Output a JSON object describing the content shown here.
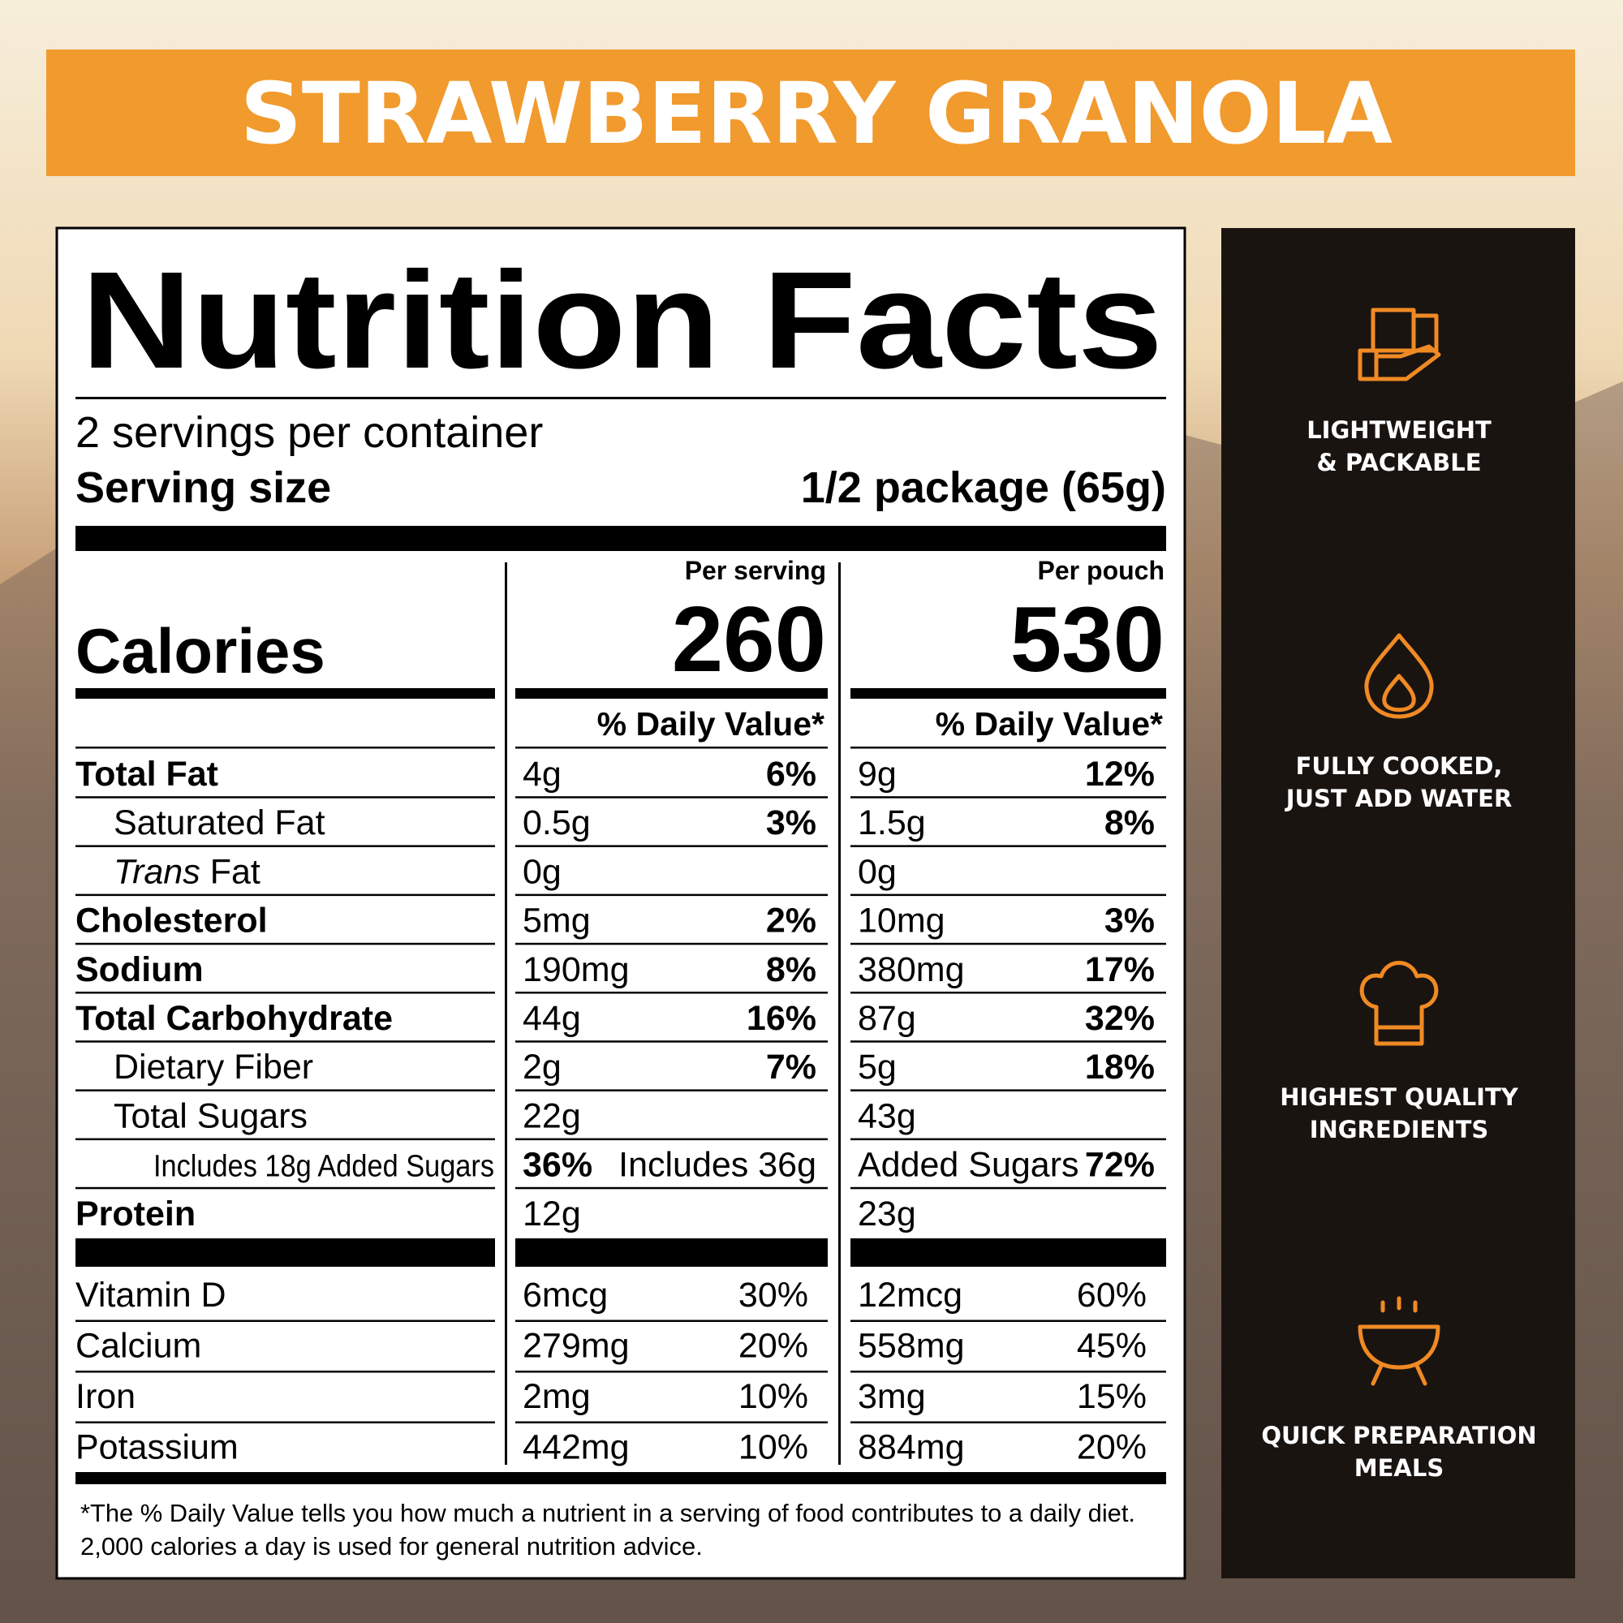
{
  "header": {
    "title": "STRAWBERRY GRANOLA"
  },
  "label": {
    "title": "Nutrition Facts",
    "servings": "2 servings per container",
    "serving_size_label": "Serving size",
    "serving_size": "1/2 package (65g)",
    "calories_label": "Calories",
    "columns": [
      {
        "heading": "Per serving",
        "calories": "260",
        "dv_heading": "% Daily Value*"
      },
      {
        "heading": "Per pouch",
        "calories": "530",
        "dv_heading": "% Daily Value*"
      }
    ],
    "rows": [
      {
        "name": "Total Fat",
        "bold": true,
        "cells": [
          [
            "4g",
            "6%"
          ],
          [
            "9g",
            "12%"
          ]
        ]
      },
      {
        "name": "Saturated Fat",
        "indent": 1,
        "cells": [
          [
            "0.5g",
            "3%"
          ],
          [
            "1.5g",
            "8%"
          ]
        ]
      },
      {
        "name_italic": "Trans",
        "name": "Fat",
        "indent": 1,
        "cells": [
          [
            "0g"
          ],
          [
            "0g"
          ]
        ]
      },
      {
        "name": "Cholesterol",
        "bold": true,
        "cells": [
          [
            "5mg",
            "2%"
          ],
          [
            "10mg",
            "3%"
          ]
        ]
      },
      {
        "name": "Sodium",
        "bold": true,
        "cells": [
          [
            "190mg",
            "8%"
          ],
          [
            "380mg",
            "17%"
          ]
        ]
      },
      {
        "name": "Total Carbohydrate",
        "bold": true,
        "cells": [
          [
            "44g",
            "16%"
          ],
          [
            "87g",
            "32%"
          ]
        ]
      },
      {
        "name": "Dietary Fiber",
        "indent": 1,
        "cells": [
          [
            "2g",
            "7%"
          ],
          [
            "5g",
            "18%"
          ]
        ]
      },
      {
        "name": "Total Sugars",
        "indent": 1,
        "cells": [
          [
            "22g"
          ],
          [
            "43g"
          ]
        ]
      },
      {
        "name": "Includes 18g Added Sugars",
        "indent": 2,
        "cells": [
          [
            "36%",
            "Includes 36g"
          ],
          [
            "Added Sugars",
            "72%"
          ]
        ]
      },
      {
        "name": "Protein",
        "bold": true,
        "cells": [
          [
            "12g"
          ],
          [
            "23g"
          ]
        ]
      }
    ],
    "vitamins": [
      {
        "name": "Vitamin D",
        "cells": [
          [
            "6mcg",
            "30%"
          ],
          [
            "12mcg",
            "60%"
          ]
        ]
      },
      {
        "name": "Calcium",
        "cells": [
          [
            "279mg",
            "20%"
          ],
          [
            "558mg",
            "45%"
          ]
        ]
      },
      {
        "name": "Iron",
        "cells": [
          [
            "2mg",
            "10%"
          ],
          [
            "3mg",
            "15%"
          ]
        ]
      },
      {
        "name": "Potassium",
        "cells": [
          [
            "442mg",
            "10%"
          ],
          [
            "884mg",
            "20%"
          ]
        ]
      }
    ],
    "footnote": [
      "*The % Daily Value tells you how much a nutrient in a serving of food contributes to a daily diet.",
      "2,000 calories a day is used for general nutrition advice."
    ]
  },
  "features": [
    {
      "lines": [
        "LIGHTWEIGHT",
        "& PACKABLE"
      ]
    },
    {
      "lines": [
        "FULLY COOKED,",
        "JUST ADD WATER"
      ]
    },
    {
      "lines": [
        "HIGHEST QUALITY",
        "INGREDIENTS"
      ]
    },
    {
      "lines": [
        "QUICK PREPARATION",
        "MEALS"
      ]
    }
  ]
}
